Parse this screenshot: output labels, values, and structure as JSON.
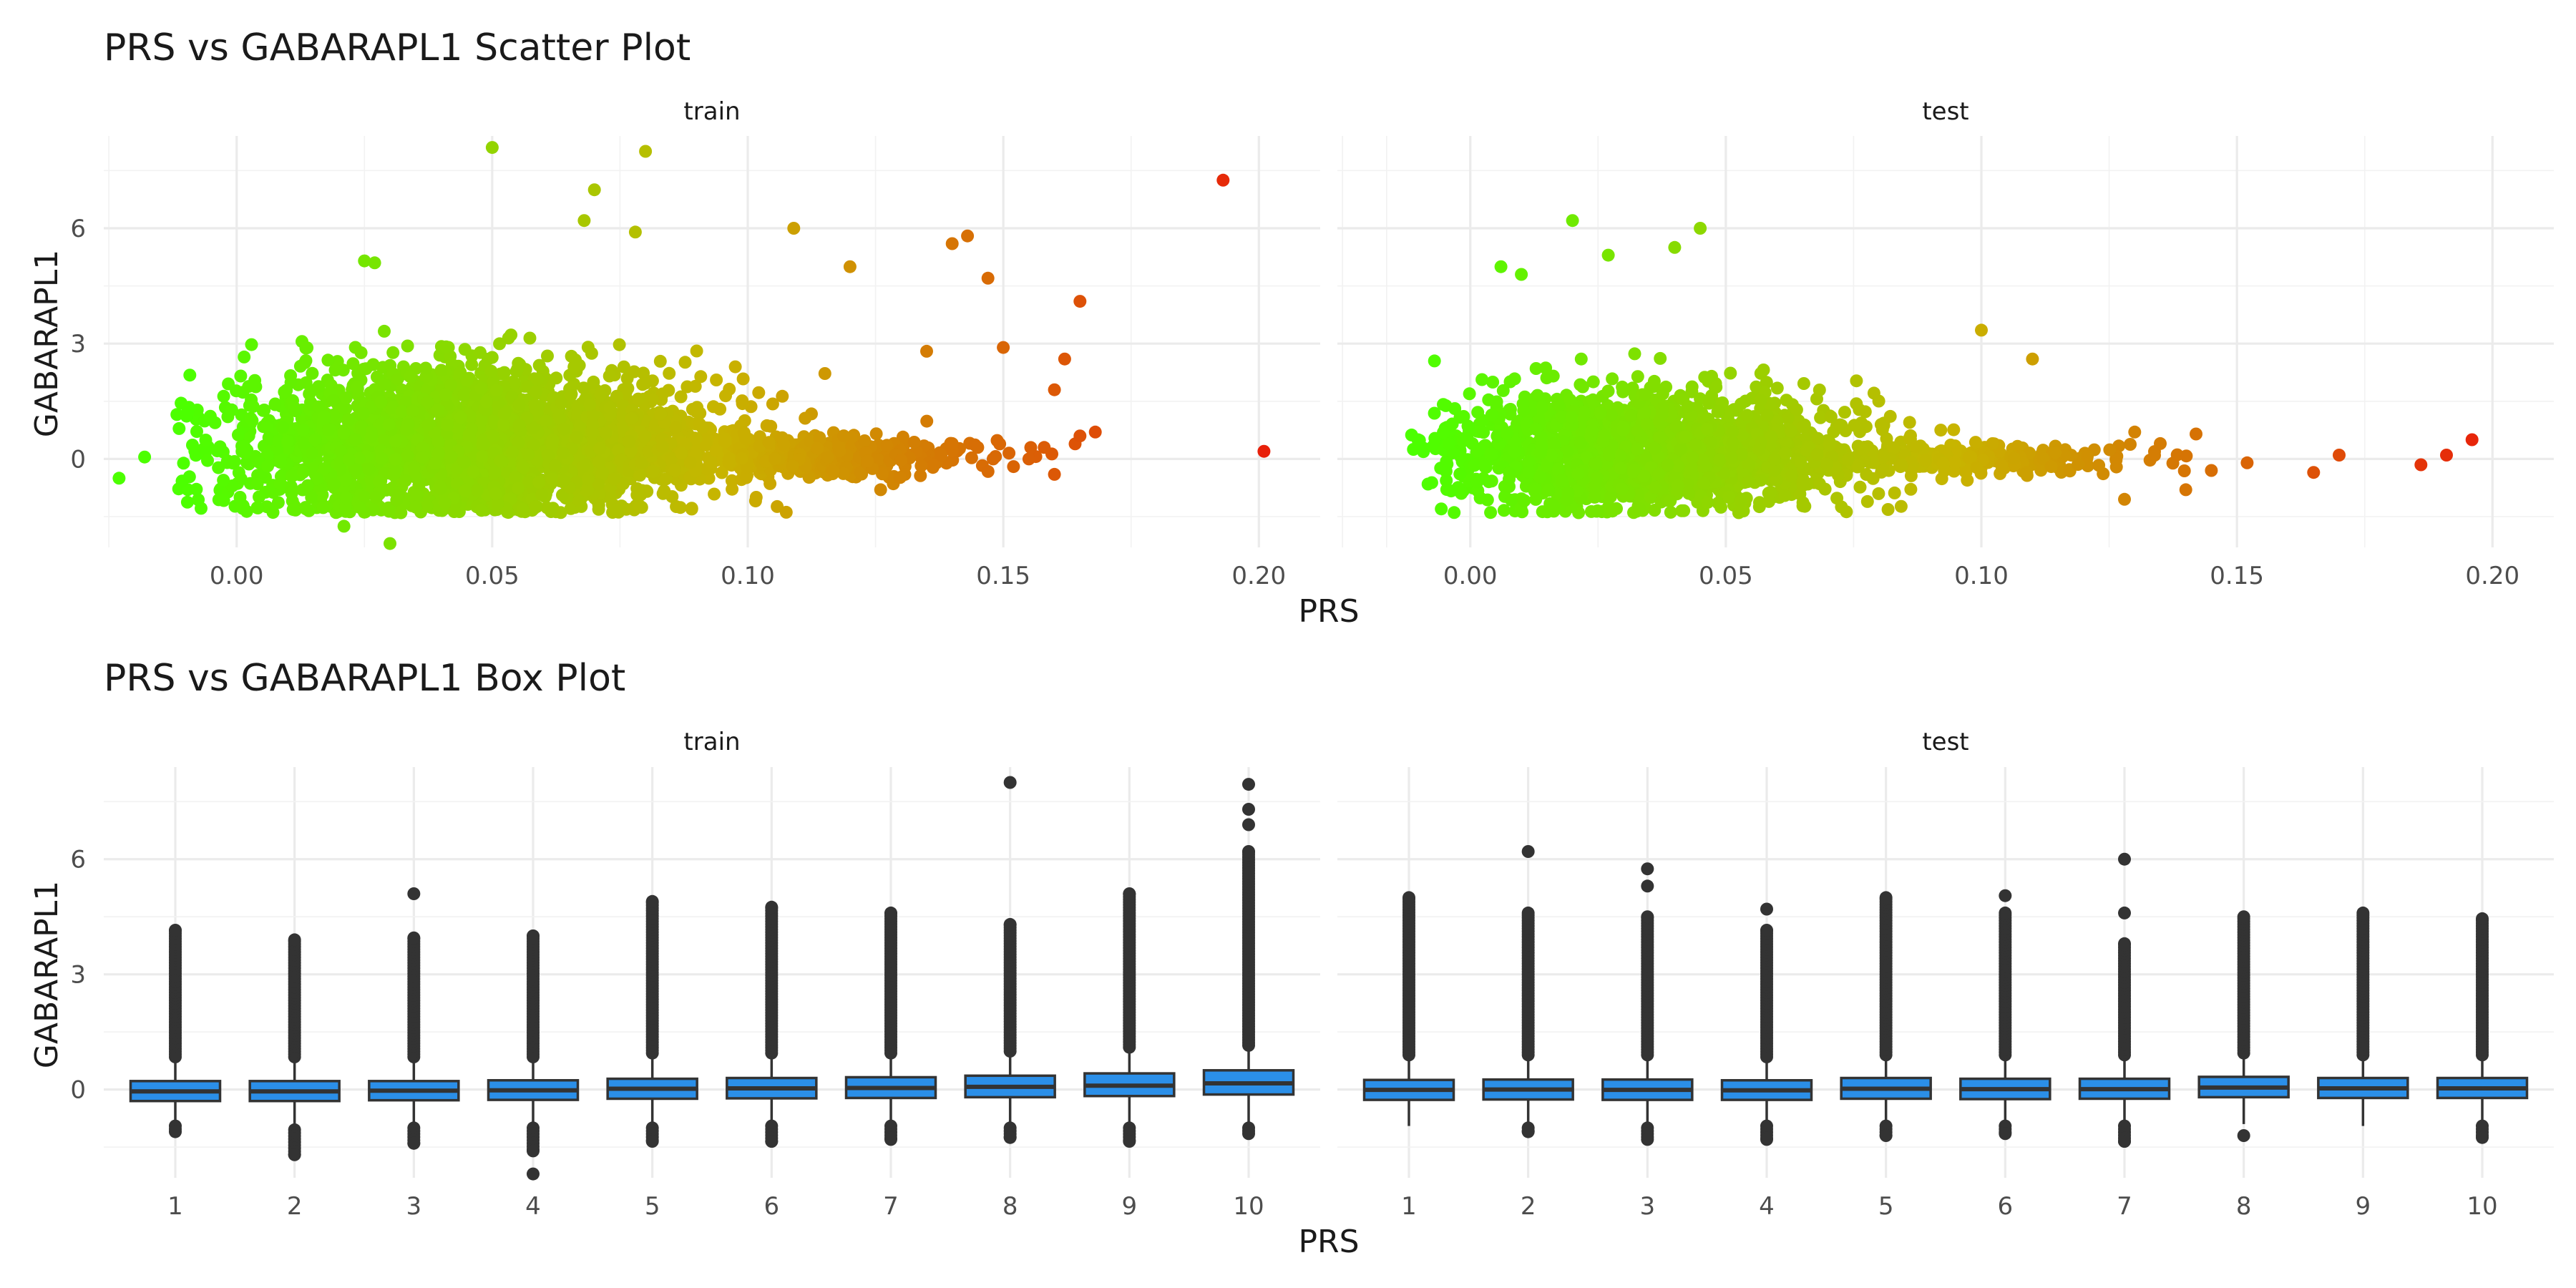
{
  "chart_data": [
    {
      "type": "scatter",
      "title": "PRS vs GABARAPL1 Scatter Plot",
      "xlabel": "PRS",
      "ylabel": "GABARAPL1",
      "facets": [
        "train",
        "test"
      ],
      "xlim": [
        -0.026,
        0.212
      ],
      "ylim": [
        -2.3,
        8.4
      ],
      "x_ticks": [
        "0.00",
        "0.05",
        "0.10",
        "0.15",
        "0.20"
      ],
      "y_ticks": [
        "0",
        "3",
        "6"
      ],
      "color_scale": {
        "low": "#4cff00",
        "mid": "#c8b400",
        "high": "#e8200a"
      },
      "clouds": {
        "train": [
          {
            "x_mean": 0.045,
            "x_sd": 0.024,
            "y_mean": 0.45,
            "y_sd": 0.95,
            "n": 2600
          },
          {
            "x_mean": 0.11,
            "x_sd": 0.018,
            "y_mean": 0.05,
            "y_sd": 0.25,
            "n": 450
          }
        ],
        "test": [
          {
            "x_mean": 0.035,
            "x_sd": 0.02,
            "y_mean": 0.25,
            "y_sd": 0.75,
            "n": 1700
          },
          {
            "x_mean": 0.095,
            "x_sd": 0.018,
            "y_mean": 0.0,
            "y_sd": 0.2,
            "n": 300
          }
        ]
      },
      "highlight_points": {
        "train": [
          [
            -0.023,
            -0.5
          ],
          [
            -0.018,
            0.05
          ],
          [
            0.021,
            -1.75
          ],
          [
            0.03,
            -2.2
          ],
          [
            0.05,
            8.1
          ],
          [
            0.08,
            8.0
          ],
          [
            0.07,
            7.0
          ],
          [
            0.068,
            6.2
          ],
          [
            0.078,
            5.9
          ],
          [
            0.027,
            5.1
          ],
          [
            0.025,
            5.15
          ],
          [
            0.109,
            6.0
          ],
          [
            0.12,
            5.0
          ],
          [
            0.14,
            5.6
          ],
          [
            0.143,
            5.8
          ],
          [
            0.147,
            4.7
          ],
          [
            0.165,
            4.1
          ],
          [
            0.193,
            7.25
          ],
          [
            0.201,
            0.2
          ],
          [
            0.162,
            2.6
          ],
          [
            0.16,
            1.8
          ],
          [
            0.168,
            0.7
          ],
          [
            0.165,
            0.6
          ],
          [
            0.152,
            -0.2
          ],
          [
            0.15,
            2.9
          ],
          [
            0.155,
            0.0
          ],
          [
            0.135,
            2.8
          ],
          [
            0.14,
            0.4
          ],
          [
            0.145,
            0.3
          ],
          [
            0.126,
            -0.8
          ],
          [
            0.16,
            -0.4
          ],
          [
            0.158,
            0.3
          ],
          [
            0.148,
            0.0
          ]
        ],
        "test": [
          [
            0.02,
            6.2
          ],
          [
            0.045,
            6.0
          ],
          [
            0.04,
            5.5
          ],
          [
            0.027,
            5.3
          ],
          [
            0.006,
            5.0
          ],
          [
            0.01,
            4.8
          ],
          [
            -0.007,
            2.55
          ],
          [
            0.1,
            3.35
          ],
          [
            0.11,
            2.6
          ],
          [
            0.152,
            -0.1
          ],
          [
            0.145,
            -0.3
          ],
          [
            0.14,
            -0.8
          ],
          [
            0.165,
            -0.35
          ],
          [
            0.17,
            0.1
          ],
          [
            0.186,
            -0.15
          ],
          [
            0.191,
            0.1
          ],
          [
            0.196,
            0.5
          ],
          [
            0.128,
            -1.05
          ],
          [
            0.13,
            0.7
          ],
          [
            0.135,
            0.4
          ],
          [
            0.142,
            0.65
          ]
        ]
      }
    },
    {
      "type": "box",
      "title": "PRS vs GABARAPL1 Box Plot",
      "xlabel": "PRS",
      "ylabel": "GABARAPL1",
      "facets": [
        "train",
        "test"
      ],
      "categories": [
        "1",
        "2",
        "3",
        "4",
        "5",
        "6",
        "7",
        "8",
        "9",
        "10"
      ],
      "ylim": [
        -2.3,
        8.4
      ],
      "y_ticks": [
        "0",
        "3",
        "6"
      ],
      "box_color": "#2b8fe8",
      "boxes": {
        "train": [
          {
            "q1": -0.3,
            "med": -0.05,
            "q3": 0.22,
            "lo": -0.9,
            "hi": 0.8,
            "out_hi": [
              0.85,
              4.15
            ],
            "out_lo": [
              -0.95,
              -1.1
            ]
          },
          {
            "q1": -0.3,
            "med": -0.05,
            "q3": 0.22,
            "lo": -0.9,
            "hi": 0.8,
            "out_hi": [
              0.85,
              3.9
            ],
            "out_lo": [
              -1.05,
              -1.7
            ]
          },
          {
            "q1": -0.28,
            "med": -0.03,
            "q3": 0.22,
            "lo": -0.9,
            "hi": 0.8,
            "out_hi": [
              0.85,
              3.95
            ],
            "out_lo": [
              -1.0,
              -1.4
            ],
            "extra": [
              5.1
            ]
          },
          {
            "q1": -0.27,
            "med": -0.02,
            "q3": 0.24,
            "lo": -0.9,
            "hi": 0.8,
            "out_hi": [
              0.85,
              4.0
            ],
            "out_lo": [
              -1.0,
              -1.6
            ],
            "extra": [
              -2.2
            ]
          },
          {
            "q1": -0.24,
            "med": 0.02,
            "q3": 0.28,
            "lo": -0.9,
            "hi": 0.88,
            "out_hi": [
              0.95,
              4.9
            ],
            "out_lo": [
              -1.0,
              -1.35
            ]
          },
          {
            "q1": -0.23,
            "med": 0.03,
            "q3": 0.3,
            "lo": -0.9,
            "hi": 0.88,
            "out_hi": [
              0.95,
              4.75
            ],
            "out_lo": [
              -0.95,
              -1.35
            ]
          },
          {
            "q1": -0.22,
            "med": 0.04,
            "q3": 0.32,
            "lo": -0.85,
            "hi": 0.9,
            "out_hi": [
              0.95,
              4.6
            ],
            "out_lo": [
              -0.95,
              -1.3
            ]
          },
          {
            "q1": -0.2,
            "med": 0.07,
            "q3": 0.36,
            "lo": -0.85,
            "hi": 0.95,
            "out_hi": [
              1.0,
              4.3
            ],
            "out_lo": [
              -1.0,
              -1.25
            ],
            "extra": [
              8.0
            ]
          },
          {
            "q1": -0.17,
            "med": 0.1,
            "q3": 0.42,
            "lo": -0.85,
            "hi": 1.05,
            "out_hi": [
              1.1,
              5.1
            ],
            "out_lo": [
              -1.0,
              -1.35
            ]
          },
          {
            "q1": -0.13,
            "med": 0.16,
            "q3": 0.5,
            "lo": -0.85,
            "hi": 1.1,
            "out_hi": [
              1.15,
              6.2
            ],
            "out_lo": [
              -1.0,
              -1.15
            ],
            "extra": [
              6.9,
              7.3,
              7.95
            ]
          }
        ],
        "test": [
          {
            "q1": -0.27,
            "med": -0.01,
            "q3": 0.25,
            "lo": -0.95,
            "hi": 0.85,
            "out_hi": [
              0.9,
              5.0
            ],
            "out_lo": []
          },
          {
            "q1": -0.26,
            "med": 0.0,
            "q3": 0.26,
            "lo": -0.9,
            "hi": 0.85,
            "out_hi": [
              0.9,
              4.6
            ],
            "out_lo": [
              -1.0,
              -1.1
            ],
            "extra": [
              6.2
            ]
          },
          {
            "q1": -0.27,
            "med": -0.01,
            "q3": 0.26,
            "lo": -0.9,
            "hi": 0.85,
            "out_hi": [
              0.9,
              4.5
            ],
            "out_lo": [
              -1.0,
              -1.3
            ],
            "extra": [
              5.3,
              5.75
            ]
          },
          {
            "q1": -0.27,
            "med": -0.02,
            "q3": 0.24,
            "lo": -0.9,
            "hi": 0.8,
            "out_hi": [
              0.85,
              4.15
            ],
            "out_lo": [
              -0.95,
              -1.3
            ],
            "extra": [
              4.7
            ]
          },
          {
            "q1": -0.24,
            "med": 0.02,
            "q3": 0.3,
            "lo": -0.9,
            "hi": 0.85,
            "out_hi": [
              0.9,
              5.0
            ],
            "out_lo": [
              -0.95,
              -1.2
            ]
          },
          {
            "q1": -0.25,
            "med": 0.01,
            "q3": 0.28,
            "lo": -0.9,
            "hi": 0.85,
            "out_hi": [
              0.9,
              4.6
            ],
            "out_lo": [
              -0.95,
              -1.15
            ],
            "extra": [
              5.05
            ]
          },
          {
            "q1": -0.24,
            "med": 0.01,
            "q3": 0.28,
            "lo": -0.9,
            "hi": 0.85,
            "out_hi": [
              0.9,
              3.8
            ],
            "out_lo": [
              -0.95,
              -1.35
            ],
            "extra": [
              4.6,
              6.0
            ]
          },
          {
            "q1": -0.2,
            "med": 0.05,
            "q3": 0.33,
            "lo": -0.9,
            "hi": 0.9,
            "out_hi": [
              0.95,
              4.5
            ],
            "out_lo": [
              -1.2
            ]
          },
          {
            "q1": -0.22,
            "med": 0.03,
            "q3": 0.3,
            "lo": -0.95,
            "hi": 0.85,
            "out_hi": [
              0.9,
              4.6
            ],
            "out_lo": []
          },
          {
            "q1": -0.22,
            "med": 0.03,
            "q3": 0.3,
            "lo": -0.9,
            "hi": 0.85,
            "out_hi": [
              0.9,
              4.45
            ],
            "out_lo": [
              -0.95,
              -1.25
            ]
          }
        ]
      }
    }
  ]
}
